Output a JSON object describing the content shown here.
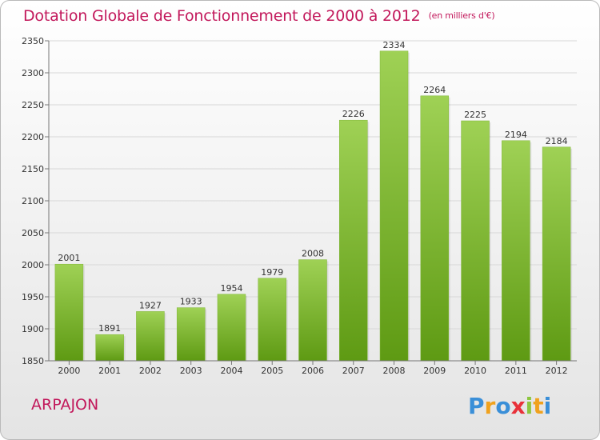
{
  "title": "Dotation Globale de Fonctionnement de 2000 à 2012",
  "units": "(en milliers d'€)",
  "city": "ARPAJON",
  "logo_text": "Proxiti",
  "colors": {
    "title": "#c2185b",
    "bar_top": "#9fd155",
    "bar_bottom": "#5e9a13",
    "grid": "#d8d8d8"
  },
  "chart_data": {
    "type": "bar",
    "title": "Dotation Globale de Fonctionnement de 2000 à 2012",
    "xlabel": "",
    "ylabel": "",
    "categories": [
      "2000",
      "2001",
      "2002",
      "2003",
      "2004",
      "2005",
      "2006",
      "2007",
      "2008",
      "2009",
      "2010",
      "2011",
      "2012"
    ],
    "values": [
      2001,
      1891,
      1927,
      1933,
      1954,
      1979,
      2008,
      2226,
      2334,
      2264,
      2225,
      2194,
      2184
    ],
    "ylim": [
      1850,
      2350
    ],
    "yticks": [
      1850,
      1900,
      1950,
      2000,
      2050,
      2100,
      2150,
      2200,
      2250,
      2300,
      2350
    ],
    "grid": true,
    "legend": "none",
    "data_labels": true
  }
}
